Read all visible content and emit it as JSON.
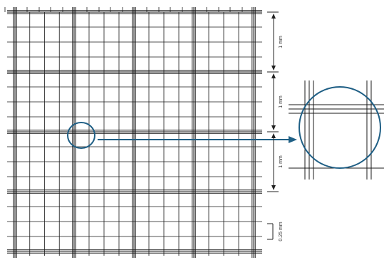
{
  "diagram": {
    "type": "counting-chamber-grid",
    "colors": {
      "grid_line": "#1a1a1a",
      "magnifier": "#1f5f85",
      "dimension": "#222222",
      "background": "#ffffff"
    },
    "grid": {
      "large_squares_per_side": 4,
      "small_squares_per_large": 4,
      "boundary_style": "triple-line"
    },
    "dimensions": [
      {
        "id": "dim-1",
        "label": "1 mm"
      },
      {
        "id": "dim-2",
        "label": "1 mm"
      },
      {
        "id": "dim-3",
        "label": "1 mm"
      },
      {
        "id": "dim-4",
        "label": "0.25 mm"
      }
    ],
    "magnifier_icon": "magnifier-circle",
    "arrow_icon": "right-arrow"
  }
}
